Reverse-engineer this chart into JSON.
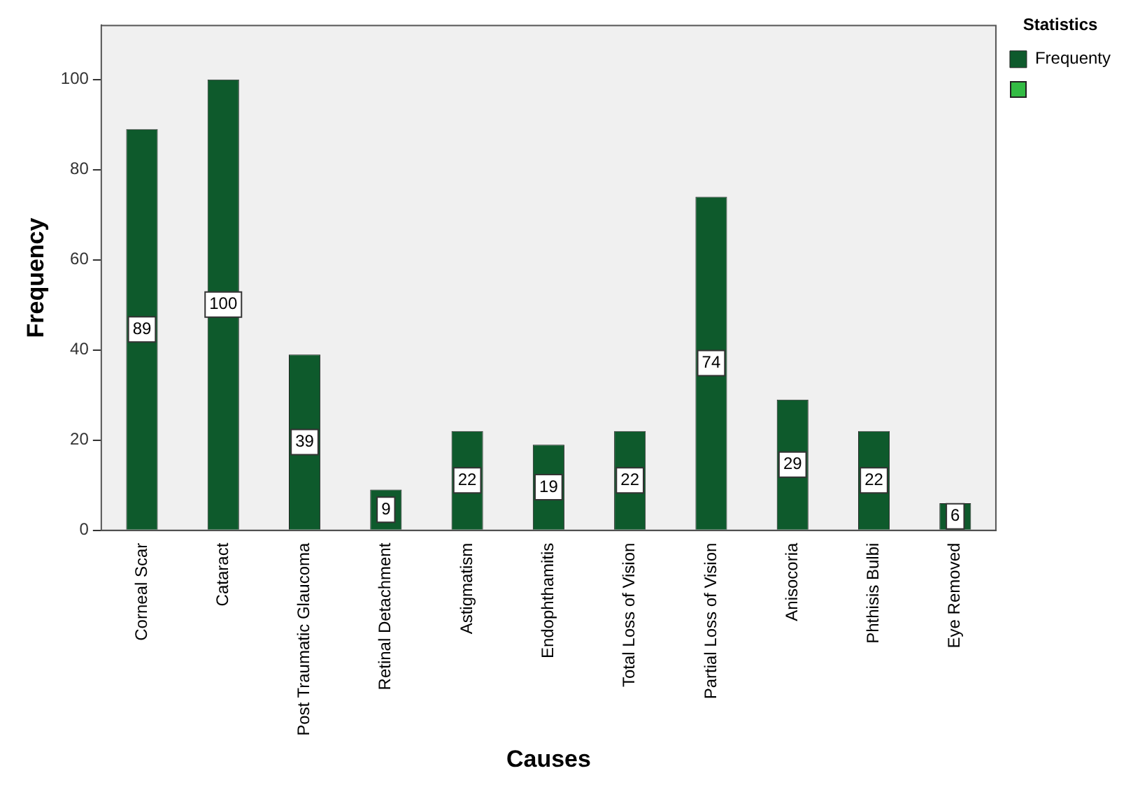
{
  "chart_data": {
    "type": "bar",
    "xlabel": "Causes",
    "ylabel": "Frequency",
    "legend_title": "Statistics",
    "legend": "top right",
    "data_labels": true,
    "categories": [
      "Corneal Scar",
      "Cataract",
      "Post Traumatic Glaucoma",
      "Retinal Detachment",
      "Astigmatism",
      "Endophthamitis",
      "Total Loss of Vision",
      "Partial Loss of Vision",
      "Anisocoria",
      "Phthisis Bulbi",
      "Eye Removed"
    ],
    "series": [
      {
        "name": "Frequenty",
        "color": "#0e5a2c",
        "values": [
          89,
          100,
          39,
          9,
          22,
          19,
          22,
          74,
          29,
          22,
          6
        ]
      }
    ],
    "ylim": [
      0,
      112
    ],
    "yticks": [
      0,
      20,
      40,
      60,
      80,
      100
    ]
  }
}
